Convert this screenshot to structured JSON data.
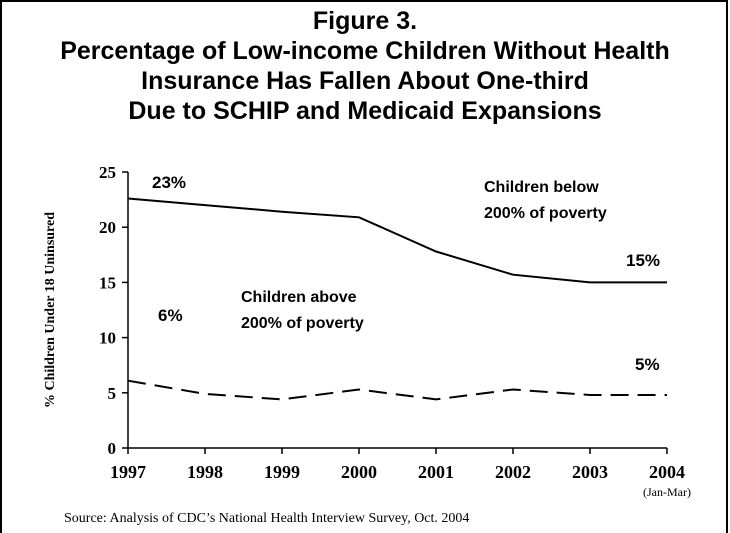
{
  "chart_data": {
    "type": "line",
    "title_lines": [
      "Figure 3.",
      "Percentage of Low-income Children Without Health",
      "Insurance Has Fallen About One-third",
      "Due to SCHIP and Medicaid Expansions"
    ],
    "ylabel": "% Children Under 18 Uninsured",
    "ylim": [
      0,
      25
    ],
    "yticks": [
      "0",
      "5",
      "10",
      "15",
      "20",
      "25"
    ],
    "categories": [
      "1997",
      "1998",
      "1999",
      "2000",
      "2001",
      "2002",
      "2003",
      "2004"
    ],
    "x_sublabel": "(Jan-Mar)",
    "series": [
      {
        "name": "Children below 200% of poverty",
        "label_lines": [
          "Children below",
          "200% of poverty"
        ],
        "style": "solid",
        "values": [
          22.6,
          22.0,
          21.4,
          20.9,
          17.8,
          15.7,
          15.0,
          15.0
        ]
      },
      {
        "name": "Children above 200% of poverty",
        "label_lines": [
          "Children above",
          "200% of poverty"
        ],
        "style": "dashed",
        "values": [
          6.1,
          4.9,
          4.4,
          5.3,
          4.4,
          5.3,
          4.8,
          4.8
        ]
      }
    ],
    "annotations": {
      "below_start": "23%",
      "below_end": "15%",
      "above_start": "6%",
      "above_end": "5%"
    },
    "grid": false,
    "source": "Source:  Analysis of CDC’s National Health Interview Survey, Oct. 2004"
  }
}
